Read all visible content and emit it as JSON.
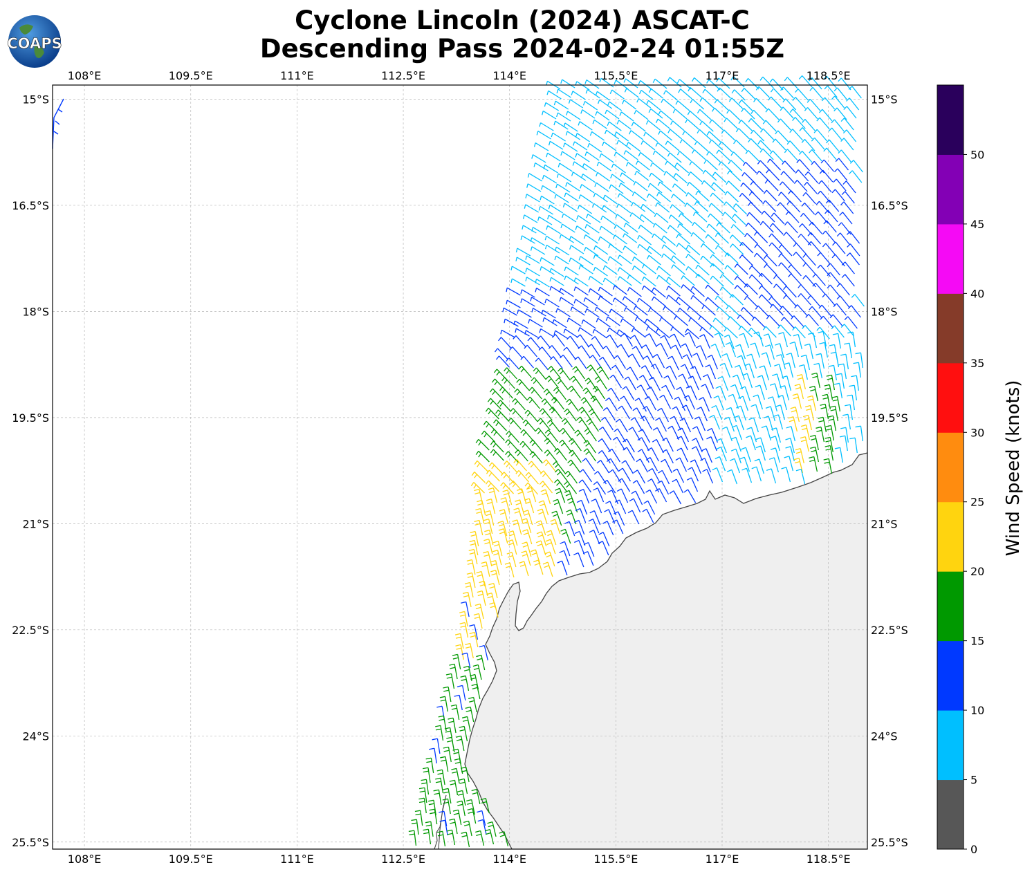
{
  "title": {
    "line1": "Cyclone Lincoln (2024) ASCAT-C",
    "line2": "Descending Pass 2024-02-24 01:55Z"
  },
  "logo": {
    "text": "COAPS",
    "icon": "globe-logo-icon"
  },
  "map": {
    "lon_range": [
      107.55,
      119.05
    ],
    "lat_range": [
      -25.6,
      -14.8
    ],
    "lon_ticks": [
      "108°E",
      "109.5°E",
      "111°E",
      "112.5°E",
      "114°E",
      "115.5°E",
      "117°E",
      "118.5°E"
    ],
    "lat_ticks": [
      "15°S",
      "16.5°S",
      "18°S",
      "19.5°S",
      "21°S",
      "22.5°S",
      "24°S",
      "25.5°S"
    ],
    "grid": true,
    "land_color": "#efefef",
    "coastline_color": "#444444"
  },
  "colorbar": {
    "label": "Wind Speed (knots)",
    "ticks": [
      "0",
      "5",
      "10",
      "15",
      "20",
      "25",
      "30",
      "35",
      "40",
      "45",
      "50"
    ],
    "colors": [
      "#575757",
      "#00bfff",
      "#0039ff",
      "#009900",
      "#ffd40f",
      "#ff8c0f",
      "#ff0f0f",
      "#853b29",
      "#f50af5",
      "#8300b5",
      "#2a005c"
    ]
  }
}
